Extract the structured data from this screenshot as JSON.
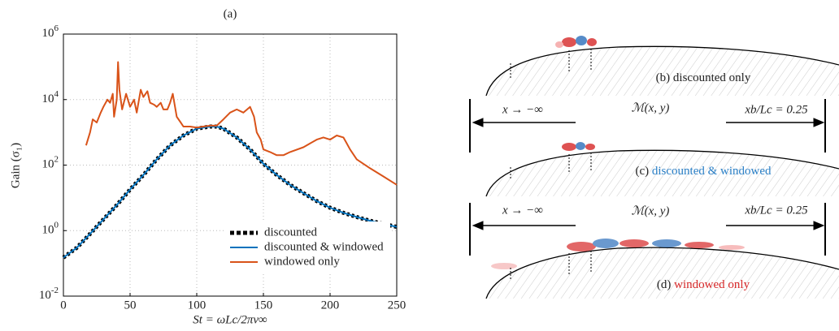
{
  "chart_data": {
    "type": "line",
    "title": "(a)",
    "x_label": "St = ωLc/2πv∞",
    "y_label": "Gain (σ₁)",
    "xlim": [
      0,
      250
    ],
    "xticks": [
      0,
      50,
      100,
      150,
      200,
      250
    ],
    "ylim": [
      0.01,
      1000000
    ],
    "log_y": true,
    "yticks": [
      {
        "value": 0.01,
        "label": "10^-2"
      },
      {
        "value": 1,
        "label": "10^0"
      },
      {
        "value": 100,
        "label": "10^2"
      },
      {
        "value": 10000,
        "label": "10^4"
      },
      {
        "value": 1000000,
        "label": "10^6"
      }
    ],
    "grid": true,
    "legend": "lower right",
    "series": [
      {
        "name": "discounted",
        "color": "#000000",
        "dashed": true,
        "x": [
          0,
          10,
          20,
          30,
          40,
          50,
          60,
          70,
          80,
          90,
          100,
          110,
          115,
          120,
          130,
          140,
          150,
          160,
          170,
          180,
          190,
          200,
          210,
          220,
          230,
          240,
          250
        ],
        "values": [
          0.15,
          0.3,
          0.8,
          2.2,
          6,
          18,
          50,
          150,
          400,
          800,
          1300,
          1500,
          1500,
          1300,
          700,
          300,
          110,
          50,
          25,
          14,
          8,
          5,
          3.5,
          2.6,
          2,
          1.6,
          1.3
        ]
      },
      {
        "name": "discounted & windowed",
        "color": "#0072bd",
        "x": [
          0,
          10,
          20,
          30,
          40,
          50,
          60,
          70,
          80,
          90,
          100,
          110,
          115,
          120,
          130,
          140,
          150,
          160,
          170,
          180,
          190,
          200,
          210,
          220,
          230,
          240,
          250
        ],
        "values": [
          0.15,
          0.3,
          0.8,
          2.2,
          6,
          18,
          50,
          150,
          400,
          800,
          1300,
          1500,
          1500,
          1300,
          700,
          300,
          110,
          50,
          25,
          14,
          8,
          5,
          3.5,
          2.6,
          2,
          1.6,
          1.3
        ]
      },
      {
        "name": "windowed only",
        "color": "#d95319",
        "x": [
          17,
          20,
          22,
          25,
          28,
          30,
          33,
          35,
          37,
          38,
          40,
          41,
          42,
          44,
          47,
          50,
          53,
          55,
          58,
          60,
          63,
          65,
          68,
          70,
          73,
          75,
          78,
          80,
          82,
          85,
          88,
          90,
          95,
          100,
          105,
          110,
          115,
          120,
          125,
          130,
          135,
          140,
          143,
          145,
          148,
          150,
          155,
          160,
          165,
          170,
          180,
          190,
          195,
          200,
          205,
          210,
          212,
          215,
          220,
          230,
          240,
          250
        ],
        "values": [
          400,
          1000,
          2500,
          2000,
          4000,
          6000,
          10000,
          8000,
          15000,
          3000,
          10000,
          140000,
          20000,
          5000,
          15000,
          6000,
          10000,
          4000,
          20000,
          12000,
          18000,
          8000,
          7000,
          6000,
          8000,
          5000,
          5000,
          8000,
          15000,
          3000,
          2000,
          1500,
          1500,
          1400,
          1500,
          1600,
          1600,
          2500,
          4000,
          5000,
          4000,
          6000,
          3000,
          1000,
          600,
          300,
          250,
          200,
          200,
          250,
          350,
          600,
          700,
          600,
          800,
          700,
          500,
          300,
          150,
          80,
          45,
          25
        ]
      }
    ]
  },
  "panels": [
    {
      "tag": "(b)",
      "caption": "discounted only"
    },
    {
      "tag": "(c)",
      "caption": "discounted & windowed"
    },
    {
      "tag": "(d)",
      "caption": "windowed only"
    }
  ],
  "domain_rows": [
    {
      "left": "x → −∞",
      "center": "ℳ(x, y)",
      "right": "xb/Lc = 0.25"
    },
    {
      "left": "x → −∞",
      "center": "ℳ(x, y)",
      "right": "xb/Lc = 0.25"
    }
  ]
}
